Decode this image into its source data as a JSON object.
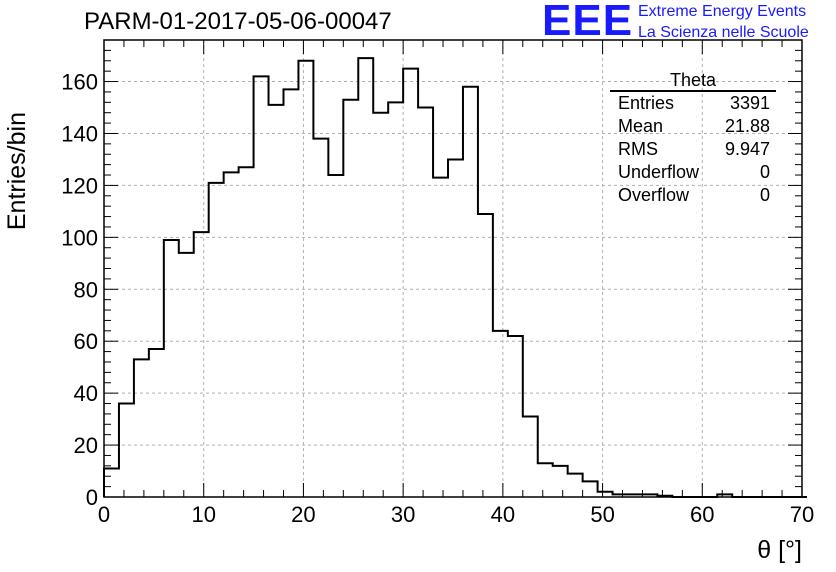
{
  "header": {
    "title": "PARM-01-2017-05-06-00047",
    "logo": "EEE",
    "tagline1": "Extreme Energy Events",
    "tagline2": "La Scienza nelle Scuole"
  },
  "stats": {
    "title": "Theta",
    "rows": [
      {
        "label": "Entries",
        "value": "3391"
      },
      {
        "label": "Mean",
        "value": "21.88"
      },
      {
        "label": "RMS",
        "value": "9.947"
      },
      {
        "label": "Underflow",
        "value": "0"
      },
      {
        "label": "Overflow",
        "value": "0"
      }
    ]
  },
  "colors": {
    "line": "#000000",
    "grid": "#b0b0b0",
    "brand": "#1a1aff"
  },
  "chart_data": {
    "type": "bar",
    "style": "step-histogram",
    "title": "PARM-01-2017-05-06-00047",
    "xlabel": "θ [°]",
    "ylabel": "Entries/bin",
    "xlim": [
      0,
      70
    ],
    "ylim": [
      0,
      176
    ],
    "grid": true,
    "legend": "top-right",
    "bin_width": 1.5,
    "bin_start": 0,
    "xticks": [
      0,
      10,
      20,
      30,
      40,
      50,
      60,
      70
    ],
    "yticks": [
      0,
      20,
      40,
      60,
      80,
      100,
      120,
      140,
      160
    ],
    "values": [
      11,
      36,
      53,
      57,
      99,
      94,
      102,
      121,
      125,
      127,
      162,
      151,
      157,
      168,
      138,
      124,
      153,
      169,
      148,
      152,
      165,
      150,
      123,
      130,
      158,
      109,
      64,
      62,
      31,
      13,
      12,
      9,
      6,
      2,
      1,
      1,
      1,
      0.5,
      0,
      0,
      0,
      1,
      0,
      0,
      0,
      0,
      0
    ]
  }
}
